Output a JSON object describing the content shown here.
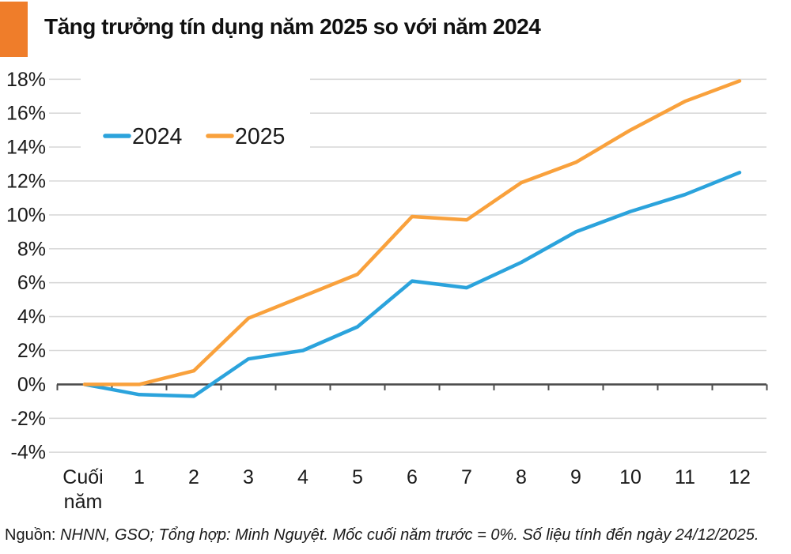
{
  "header": {
    "title": "Tăng trưởng tín dụng năm 2025 so với năm 2024",
    "accent_color": "#EF7D2A"
  },
  "legend": {
    "items": [
      {
        "label": "2024",
        "color": "#2BA3DC"
      },
      {
        "label": "2025",
        "color": "#F9A13C"
      }
    ]
  },
  "chart_data": {
    "type": "line",
    "title": "Tăng trưởng tín dụng năm 2025 so với năm 2024",
    "categories": [
      "Cuối năm",
      "1",
      "2",
      "3",
      "4",
      "5",
      "6",
      "7",
      "8",
      "9",
      "10",
      "11",
      "12"
    ],
    "series": [
      {
        "name": "2024",
        "color": "#2BA3DC",
        "values": [
          0,
          -0.6,
          -0.7,
          1.5,
          2.0,
          3.4,
          6.1,
          5.7,
          7.2,
          9.0,
          10.2,
          11.2,
          12.5
        ]
      },
      {
        "name": "2025",
        "color": "#F9A13C",
        "values": [
          0,
          0.0,
          0.8,
          3.9,
          5.2,
          6.5,
          9.9,
          9.7,
          11.9,
          13.1,
          15.0,
          16.7,
          17.9
        ]
      }
    ],
    "y_ticks": [
      {
        "value": 18,
        "label": "18%"
      },
      {
        "value": 16,
        "label": "16%"
      },
      {
        "value": 14,
        "label": "14%"
      },
      {
        "value": 12,
        "label": "12%"
      },
      {
        "value": 10,
        "label": "10%"
      },
      {
        "value": 8,
        "label": "8%"
      },
      {
        "value": 6,
        "label": "6%"
      },
      {
        "value": 4,
        "label": "4%"
      },
      {
        "value": 2,
        "label": "2%"
      },
      {
        "value": 0,
        "label": "0%"
      },
      {
        "value": -2,
        "label": "-2%"
      },
      {
        "value": -4,
        "label": "-4%"
      }
    ],
    "ylim": [
      -4,
      18
    ],
    "xlabel": "",
    "ylabel": "",
    "grid": "horizontal",
    "gridline_color": "#D9D9D9",
    "axis_color": "#4D4D4D",
    "legend_position": "inside-top-left",
    "baseline_note": "Mốc cuối năm trước = 0%"
  },
  "footer": {
    "prefix": "Nguồn:",
    "text": " NHNN, GSO; Tổng hợp: Minh Nguyệt. Mốc cuối năm trước = 0%.  Số liệu tính đến ngày 24/12/2025."
  }
}
